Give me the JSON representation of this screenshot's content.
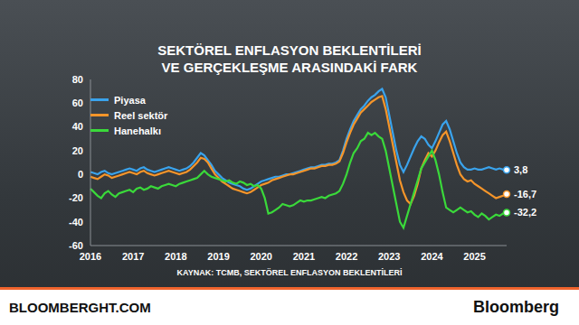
{
  "chart_data": {
    "type": "line",
    "title": "SEKTÖREL ENFLASYON BEKLENTİLERİ VE GERÇEKLEŞME ARASINDAKİ FARK",
    "source": "KAYNAK: TCMB, SEKTÖREL ENFLASYON BEKLENTİLERİ",
    "footer": {
      "left": "BLOOMBERGHT.COM",
      "right": "Bloomberg"
    },
    "categories": [
      "2016",
      null,
      null,
      null,
      null,
      null,
      null,
      null,
      null,
      null,
      null,
      null,
      "2017",
      null,
      null,
      null,
      null,
      null,
      null,
      null,
      null,
      null,
      null,
      null,
      "2018",
      null,
      null,
      null,
      null,
      null,
      null,
      null,
      null,
      null,
      null,
      null,
      "2019",
      null,
      null,
      null,
      null,
      null,
      null,
      null,
      null,
      null,
      null,
      null,
      "2020",
      null,
      null,
      null,
      null,
      null,
      null,
      null,
      null,
      null,
      null,
      null,
      "2021",
      null,
      null,
      null,
      null,
      null,
      null,
      null,
      null,
      null,
      null,
      null,
      "2022",
      null,
      null,
      null,
      null,
      null,
      null,
      null,
      null,
      null,
      null,
      null,
      "2023",
      null,
      null,
      null,
      null,
      null,
      null,
      null,
      null,
      null,
      null,
      null,
      "2024",
      null,
      null,
      null,
      null,
      null,
      null,
      null,
      null,
      null,
      null,
      null,
      "2025",
      null,
      null,
      null,
      null,
      null,
      null,
      null,
      null,
      null
    ],
    "ylim": [
      -60,
      80
    ],
    "yticks": [
      -60,
      -40,
      -20,
      0,
      20,
      40,
      60,
      80
    ],
    "grid": false,
    "legend": "upper left",
    "data_labels": true,
    "series": [
      {
        "name": "Piyasa",
        "color": "#3aa3ec",
        "values": [
          2,
          1,
          0,
          2,
          3,
          1,
          0,
          1,
          2,
          3,
          4,
          5,
          4,
          3,
          5,
          6,
          4,
          3,
          2,
          3,
          4,
          5,
          6,
          5,
          4,
          3,
          4,
          5,
          7,
          10,
          14,
          18,
          16,
          12,
          8,
          3,
          0,
          -3,
          -5,
          -7,
          -8,
          -9,
          -10,
          -12,
          -13,
          -12,
          -10,
          -8,
          -6,
          -5,
          -4,
          -3,
          -2,
          -2,
          -1,
          0,
          0,
          1,
          2,
          3,
          4,
          5,
          6,
          6,
          7,
          8,
          8,
          9,
          9,
          10,
          12,
          20,
          30,
          38,
          45,
          50,
          55,
          58,
          62,
          65,
          67,
          70,
          72,
          65,
          50,
          35,
          20,
          8,
          2,
          8,
          15,
          22,
          28,
          32,
          30,
          25,
          22,
          28,
          35,
          42,
          45,
          38,
          28,
          18,
          10,
          6,
          4,
          4,
          5,
          4,
          4,
          5,
          6,
          5,
          4,
          5,
          4,
          3.8
        ],
        "value_labels": [
          null,
          null,
          null,
          null,
          null,
          null,
          null,
          null,
          null,
          null,
          null,
          null,
          null,
          null,
          null,
          null,
          null,
          null,
          null,
          null,
          null,
          null,
          null,
          null,
          null,
          null,
          null,
          null,
          null,
          null,
          null,
          null,
          null,
          null,
          null,
          null,
          null,
          null,
          null,
          null,
          null,
          null,
          null,
          null,
          null,
          null,
          null,
          null,
          null,
          null,
          null,
          null,
          null,
          null,
          null,
          null,
          null,
          null,
          null,
          null,
          null,
          null,
          null,
          null,
          null,
          null,
          null,
          null,
          null,
          null,
          null,
          null,
          null,
          null,
          null,
          null,
          null,
          null,
          null,
          null,
          null,
          null,
          null,
          null,
          null,
          null,
          null,
          null,
          null,
          null,
          null,
          null,
          null,
          null,
          null,
          null,
          null,
          null,
          null,
          null,
          null,
          null,
          null,
          null,
          null,
          null,
          null,
          null,
          null,
          null,
          null,
          null,
          null,
          null,
          null,
          null,
          null,
          "3,8"
        ]
      },
      {
        "name": "Reel sektör",
        "color": "#f5952a",
        "values": [
          -2,
          -3,
          -4,
          -2,
          0,
          -1,
          -3,
          -2,
          -1,
          0,
          1,
          2,
          1,
          0,
          2,
          3,
          1,
          0,
          -1,
          0,
          1,
          2,
          3,
          2,
          1,
          0,
          1,
          2,
          4,
          7,
          10,
          14,
          13,
          10,
          5,
          0,
          -3,
          -6,
          -8,
          -10,
          -12,
          -13,
          -14,
          -15,
          -16,
          -15,
          -13,
          -11,
          -9,
          -8,
          -7,
          -5,
          -4,
          -3,
          -2,
          -1,
          0,
          0,
          1,
          2,
          3,
          4,
          5,
          5,
          6,
          7,
          7,
          8,
          8,
          9,
          11,
          18,
          27,
          35,
          42,
          47,
          52,
          55,
          58,
          61,
          63,
          65,
          66,
          55,
          40,
          25,
          10,
          -5,
          -15,
          -22,
          -25,
          -18,
          -8,
          5,
          12,
          18,
          15,
          20,
          27,
          33,
          36,
          28,
          18,
          8,
          0,
          -4,
          -6,
          -5,
          -8,
          -10,
          -12,
          -14,
          -16,
          -18,
          -20,
          -19,
          -18,
          -16.7
        ],
        "value_labels": [
          null,
          null,
          null,
          null,
          null,
          null,
          null,
          null,
          null,
          null,
          null,
          null,
          null,
          null,
          null,
          null,
          null,
          null,
          null,
          null,
          null,
          null,
          null,
          null,
          null,
          null,
          null,
          null,
          null,
          null,
          null,
          null,
          null,
          null,
          null,
          null,
          null,
          null,
          null,
          null,
          null,
          null,
          null,
          null,
          null,
          null,
          null,
          null,
          null,
          null,
          null,
          null,
          null,
          null,
          null,
          null,
          null,
          null,
          null,
          null,
          null,
          null,
          null,
          null,
          null,
          null,
          null,
          null,
          null,
          null,
          null,
          null,
          null,
          null,
          null,
          null,
          null,
          null,
          null,
          null,
          null,
          null,
          null,
          null,
          null,
          null,
          null,
          null,
          null,
          null,
          null,
          null,
          null,
          null,
          null,
          null,
          null,
          null,
          null,
          null,
          null,
          null,
          null,
          null,
          null,
          null,
          null,
          null,
          null,
          null,
          null,
          null,
          null,
          null,
          null,
          null,
          null,
          "-16,7"
        ]
      },
      {
        "name": "Hanehalkı",
        "color": "#3ad93a",
        "values": [
          -12,
          -15,
          -18,
          -20,
          -16,
          -14,
          -17,
          -19,
          -16,
          -15,
          -14,
          -13,
          -15,
          -12,
          -11,
          -13,
          -12,
          -10,
          -11,
          -12,
          -10,
          -9,
          -8,
          -9,
          -10,
          -8,
          -7,
          -6,
          -5,
          -4,
          -3,
          0,
          3,
          0,
          -2,
          -3,
          -4,
          -5,
          -6,
          -5,
          -7,
          -8,
          -6,
          -7,
          -9,
          -8,
          -10,
          -9,
          -12,
          -20,
          -33,
          -32,
          -30,
          -28,
          -25,
          -26,
          -27,
          -26,
          -24,
          -22,
          -23,
          -22,
          -22,
          -21,
          -20,
          -19,
          -20,
          -18,
          -17,
          -16,
          -14,
          -8,
          0,
          10,
          18,
          22,
          28,
          30,
          35,
          33,
          35,
          32,
          30,
          20,
          5,
          -10,
          -25,
          -40,
          -45,
          -35,
          -25,
          -15,
          -5,
          5,
          10,
          15,
          20,
          12,
          0,
          -15,
          -28,
          -30,
          -32,
          -30,
          -28,
          -30,
          -32,
          -31,
          -34,
          -36,
          -33,
          -35,
          -38,
          -36,
          -34,
          -35,
          -33,
          -32.2
        ],
        "value_labels": [
          null,
          null,
          null,
          null,
          null,
          null,
          null,
          null,
          null,
          null,
          null,
          null,
          null,
          null,
          null,
          null,
          null,
          null,
          null,
          null,
          null,
          null,
          null,
          null,
          null,
          null,
          null,
          null,
          null,
          null,
          null,
          null,
          null,
          null,
          null,
          null,
          null,
          null,
          null,
          null,
          null,
          null,
          null,
          null,
          null,
          null,
          null,
          null,
          null,
          null,
          null,
          null,
          null,
          null,
          null,
          null,
          null,
          null,
          null,
          null,
          null,
          null,
          null,
          null,
          null,
          null,
          null,
          null,
          null,
          null,
          null,
          null,
          null,
          null,
          null,
          null,
          null,
          null,
          null,
          null,
          null,
          null,
          null,
          null,
          null,
          null,
          null,
          null,
          null,
          null,
          null,
          null,
          null,
          null,
          null,
          null,
          null,
          null,
          null,
          null,
          null,
          null,
          null,
          null,
          null,
          null,
          null,
          null,
          null,
          null,
          null,
          null,
          null,
          null,
          null,
          null,
          null,
          "-32,2"
        ]
      }
    ]
  }
}
